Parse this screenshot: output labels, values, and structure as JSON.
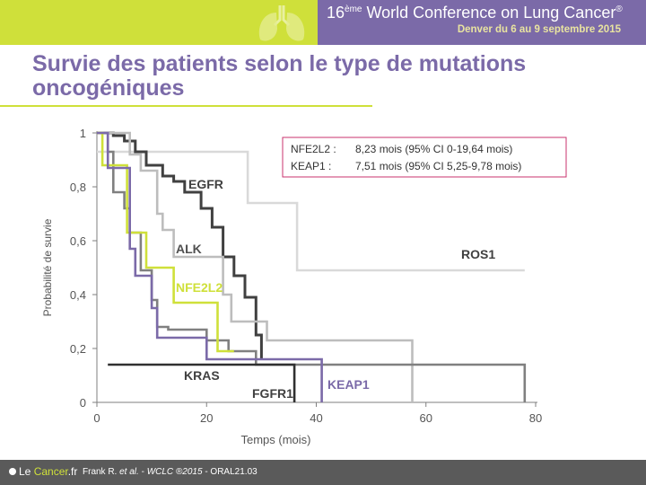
{
  "header": {
    "conference_prefix": "16",
    "conference_sup": "ème",
    "conference_name": "World Conference on Lung Cancer",
    "conference_reg": "®",
    "conference_dates": "Denver du 6 au 9 septembre 2015"
  },
  "slide": {
    "title": "Survie des patients selon le type de mutations oncogéniques"
  },
  "footer": {
    "logo_prefix": "Le ",
    "logo_accent": "Cancer",
    "logo_suffix": ".fr",
    "citation_author": "Frank R. ",
    "citation_etal": "et al.",
    "citation_sep": " - ",
    "citation_conf": "WCLC ®2015",
    "citation_code": " - ORAL21.03"
  },
  "chart_data": {
    "type": "line",
    "step": true,
    "xlabel": "Temps (mois)",
    "ylabel": "Probabilité de survie",
    "xlim": [
      0,
      80
    ],
    "ylim": [
      0,
      1
    ],
    "xticks": [
      "0",
      "20",
      "40",
      "60",
      "80"
    ],
    "yticks": [
      "0",
      "0,2",
      "0,4",
      "0,6",
      "0,8",
      "1"
    ],
    "grid": false,
    "legend_box": {
      "rows": [
        {
          "label": "NFE2L2 :",
          "text": "8,23 mois (95% CI 0-19,64 mois)"
        },
        {
          "label": "KEAP1 :",
          "text": "7,51 mois (95% CI 5,25-9,78 mois)"
        }
      ],
      "border_color": "#c8336e"
    },
    "series": [
      {
        "name": "ROS1",
        "color": "#d9d9d9",
        "width": 2.6,
        "x": [
          0,
          27.5,
          27.5,
          36.5,
          36.5,
          78
        ],
        "y": [
          0.93,
          0.93,
          0.74,
          0.74,
          0.49,
          0.49
        ]
      },
      {
        "name": "EGFR",
        "color": "#404040",
        "width": 3.0,
        "x": [
          0,
          3,
          3,
          5,
          5,
          7,
          7,
          9,
          9,
          12,
          12,
          14,
          14,
          16,
          16,
          19,
          19,
          21,
          21,
          23,
          23,
          25,
          25,
          27,
          27,
          29,
          29,
          30,
          30
        ],
        "y": [
          1,
          1,
          0.99,
          0.99,
          0.97,
          0.97,
          0.93,
          0.93,
          0.88,
          0.88,
          0.84,
          0.84,
          0.82,
          0.82,
          0.78,
          0.78,
          0.72,
          0.72,
          0.65,
          0.65,
          0.54,
          0.54,
          0.47,
          0.47,
          0.39,
          0.39,
          0.25,
          0.25,
          0.16
        ]
      },
      {
        "name": "ALK",
        "color": "#bdbdbd",
        "width": 2.6,
        "x": [
          0,
          6,
          6,
          8,
          8,
          11,
          11,
          12,
          12,
          14,
          14,
          23,
          23,
          24.5,
          24.5,
          31,
          31,
          57.5,
          57.5
        ],
        "y": [
          1,
          1,
          0.92,
          0.92,
          0.86,
          0.86,
          0.7,
          0.7,
          0.64,
          0.64,
          0.54,
          0.54,
          0.4,
          0.4,
          0.3,
          0.3,
          0.23,
          0.23,
          0
        ]
      },
      {
        "name": "KRAS",
        "color": "#808080",
        "width": 2.6,
        "x": [
          0,
          2,
          2,
          3,
          3,
          5,
          5,
          6,
          6,
          8,
          8,
          10,
          10,
          11,
          11,
          13,
          13,
          20,
          20,
          24,
          24,
          29,
          29,
          78,
          78
        ],
        "y": [
          1,
          1,
          0.93,
          0.93,
          0.78,
          0.78,
          0.72,
          0.72,
          0.63,
          0.63,
          0.49,
          0.49,
          0.38,
          0.38,
          0.28,
          0.28,
          0.27,
          0.27,
          0.23,
          0.23,
          0.19,
          0.19,
          0.14,
          0.14,
          0
        ]
      },
      {
        "name": "NFE2L2",
        "color": "#cfe03a",
        "width": 2.6,
        "x": [
          0,
          1,
          1,
          5.5,
          5.5,
          9,
          9,
          14,
          14,
          22,
          22,
          25
        ],
        "y": [
          1,
          1,
          0.88,
          0.88,
          0.63,
          0.63,
          0.5,
          0.5,
          0.37,
          0.37,
          0.19,
          0.19
        ]
      },
      {
        "name": "KEAP1",
        "color": "#7b6aa8",
        "width": 2.6,
        "x": [
          0,
          2,
          2,
          6,
          6,
          7,
          7,
          10,
          10,
          11,
          11,
          20,
          20,
          41,
          41
        ],
        "y": [
          1,
          1,
          0.87,
          0.87,
          0.57,
          0.57,
          0.47,
          0.47,
          0.35,
          0.35,
          0.24,
          0.24,
          0.16,
          0.16,
          0
        ]
      },
      {
        "name": "FGFR1",
        "color": "#303030",
        "width": 2.6,
        "x": [
          2,
          36,
          36
        ],
        "y": [
          0.14,
          0.14,
          0
        ]
      }
    ],
    "series_labels": [
      {
        "text": "EGFR",
        "color": "#404040"
      },
      {
        "text": "ALK",
        "color": "#505050"
      },
      {
        "text": "NFE2L2",
        "color": "#cfe03a"
      },
      {
        "text": "ROS1",
        "color": "#404040"
      },
      {
        "text": "KRAS",
        "color": "#404040"
      },
      {
        "text": "FGFR1",
        "color": "#404040"
      },
      {
        "text": "KEAP1",
        "color": "#7b6aa8"
      }
    ]
  }
}
